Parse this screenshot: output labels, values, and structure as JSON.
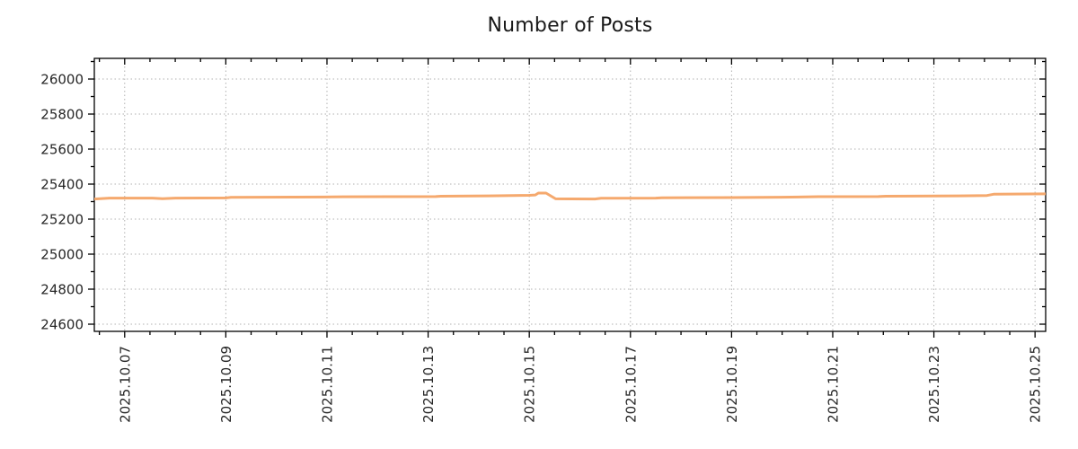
{
  "page": {
    "background": "#ffffff"
  },
  "chart_data": {
    "type": "line",
    "title": "Number of Posts",
    "xlabel": "",
    "ylabel": "",
    "legend": "none",
    "grid": true,
    "styles": {
      "line_color": "#f5a96e",
      "line_width": 3,
      "grid_color": "#b0b0b0",
      "axis_color": "#000000",
      "tick_label_color": "#262626",
      "background": "#ffffff"
    },
    "x_axis": {
      "unit": "date (day 1 = 2025.10.07)",
      "lim": [
        0.4,
        19.21
      ],
      "major_tick_positions": [
        1,
        3,
        5,
        7,
        9,
        11,
        13,
        15,
        17,
        19
      ],
      "major_tick_labels": [
        "2025.10.07",
        "2025.10.09",
        "2025.10.11",
        "2025.10.13",
        "2025.10.15",
        "2025.10.17",
        "2025.10.19",
        "2025.10.21",
        "2025.10.23",
        "2025.10.25"
      ],
      "minor_step": 0.5,
      "label_rotation_deg": 90
    },
    "y_axis": {
      "lim": [
        24559,
        26118
      ],
      "major_ticks": [
        24600,
        24800,
        25000,
        25200,
        25400,
        25600,
        25800,
        26000
      ],
      "major_tick_labels": [
        "24600",
        "24800",
        "25000",
        "25200",
        "25400",
        "25600",
        "25800",
        "26000"
      ],
      "minor_step": 100
    },
    "series": [
      {
        "name": "Number of Posts",
        "points_day_value": [
          [
            0.4,
            25315
          ],
          [
            0.7,
            25320
          ],
          [
            1.55,
            25320
          ],
          [
            1.75,
            25317
          ],
          [
            2.0,
            25320
          ],
          [
            3.0,
            25321
          ],
          [
            3.1,
            25324
          ],
          [
            4.95,
            25326
          ],
          [
            5.1,
            25327
          ],
          [
            7.15,
            25329
          ],
          [
            7.25,
            25331
          ],
          [
            8.2,
            25333
          ],
          [
            9.0,
            25336
          ],
          [
            9.12,
            25338
          ],
          [
            9.18,
            25349
          ],
          [
            9.33,
            25349
          ],
          [
            9.52,
            25316
          ],
          [
            10.3,
            25315
          ],
          [
            10.42,
            25319
          ],
          [
            11.5,
            25320
          ],
          [
            11.62,
            25322
          ],
          [
            13.0,
            25323
          ],
          [
            14.0,
            25325
          ],
          [
            14.72,
            25328
          ],
          [
            15.9,
            25329
          ],
          [
            16.05,
            25331
          ],
          [
            17.5,
            25333
          ],
          [
            18.05,
            25335
          ],
          [
            18.18,
            25342
          ],
          [
            19.21,
            25344
          ]
        ]
      }
    ]
  }
}
